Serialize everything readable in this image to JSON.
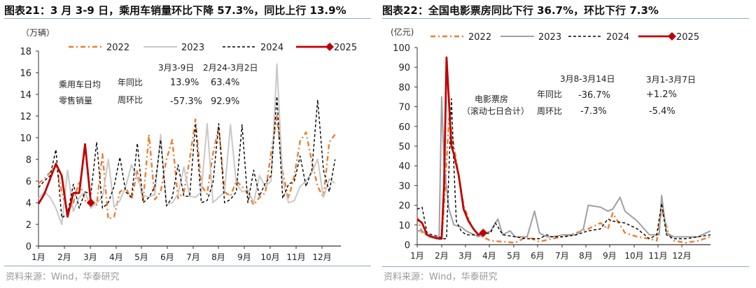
{
  "left": {
    "title": "图表21：3 月 3-9 日，乘用车销量环比下降 57.3%，同比上行 13.9%",
    "unit": "（万辆）",
    "source": "资料来源：Wind，华泰研究",
    "legend": [
      "2022",
      "2023",
      "2024",
      "2025"
    ],
    "table": {
      "row_label_1": "乘用车日均",
      "row_label_2": "零售销量",
      "col_1": "3月3-9日",
      "col_2": "2月24-3月2日",
      "yoy_label": "年同比",
      "wow_label": "周环比",
      "yoy_1": "13.9%",
      "yoy_2": "63.4%",
      "wow_1": "-57.3%",
      "wow_2": "92.9%"
    }
  },
  "right": {
    "title": "图表22：全国电影票房同比下行 36.7%，环比下行 7.3%",
    "unit": "(亿元)",
    "source": "资料来源：Wind，华泰研究",
    "legend": [
      "2022",
      "2023",
      "2024",
      "2025"
    ],
    "table": {
      "row_label_1": "电影票房",
      "row_label_2": "（滚动七日合计）",
      "col_1": "3月8-3月14日",
      "col_2": "3月1-3月7日",
      "yoy_label": "年同比",
      "wow_label": "周环比",
      "yoy_1": "-36.7%",
      "yoy_2": "+1.2%",
      "wow_1": "-7.3%",
      "wow_2": "-5.4%"
    }
  },
  "colors": {
    "y2022": "#ED7D31",
    "y2023": "#C8C8C8",
    "y2023_right": "#A0A0A0",
    "y2024": "#000000",
    "y2025": "#C00000"
  },
  "chart_data": [
    {
      "type": "line",
      "title": "图表21：3 月 3-9 日，乘用车销量环比下降 57.3%，同比上行 13.9%",
      "ylabel": "万辆",
      "ylim": [
        0,
        18
      ],
      "yticks": [
        0,
        2,
        4,
        6,
        8,
        10,
        12,
        14,
        16,
        18
      ],
      "xticks": [
        "1月",
        "2月",
        "3月",
        "4月",
        "5月",
        "6月",
        "7月",
        "8月",
        "9月",
        "10月",
        "11月",
        "12月"
      ],
      "legend_position": "top",
      "x_unit": "week index (approx, 0-52)",
      "series": [
        {
          "name": "2022",
          "style": "dash-dot orange",
          "x": [
            0,
            1,
            2,
            3,
            4,
            5,
            6,
            7,
            8,
            9,
            10,
            11,
            12,
            13,
            14,
            15,
            16,
            17,
            18,
            19,
            20,
            21,
            22,
            23,
            24,
            25,
            26,
            27,
            28,
            29,
            30,
            31,
            32,
            33,
            34,
            35,
            36,
            37,
            38,
            39,
            40,
            41,
            42,
            43,
            44,
            45,
            46,
            47,
            48,
            49,
            50,
            51
          ],
          "values": [
            5.8,
            6.2,
            6.8,
            7.5,
            5.0,
            3.2,
            4.0,
            6.0,
            4.2,
            4.0,
            3.8,
            8.5,
            2.5,
            2.7,
            5.0,
            5.4,
            4.3,
            7.0,
            4.2,
            10.3,
            4.3,
            5.0,
            8.0,
            9.8,
            4.4,
            5.0,
            8.0,
            11.7,
            5.6,
            4.8,
            8.5,
            11.0,
            5.0,
            4.6,
            6.0,
            5.5,
            4.8,
            3.8,
            4.5,
            4.9,
            8.6,
            12.0,
            6.8,
            4.4,
            6.5,
            9.7,
            10.5,
            7.8,
            5.5,
            4.5,
            9.6,
            10.3
          ]
        },
        {
          "name": "2023",
          "style": "solid light gray",
          "x": [
            0,
            1,
            2,
            3,
            4,
            5,
            6,
            7,
            8,
            9,
            10,
            11,
            12,
            13,
            14,
            15,
            16,
            17,
            18,
            19,
            20,
            21,
            22,
            23,
            24,
            25,
            26,
            27,
            28,
            29,
            30,
            31,
            32,
            33,
            34,
            35,
            36,
            37,
            38,
            39,
            40,
            41,
            42,
            43,
            44,
            45,
            46,
            47,
            48,
            49,
            50,
            51
          ],
          "values": [
            4.4,
            5.0,
            4.5,
            3.5,
            2.0,
            7.0,
            3.2,
            4.5,
            5.0,
            3.5,
            4.0,
            4.5,
            8.0,
            3.6,
            4.2,
            5.5,
            7.5,
            6.3,
            4.7,
            4.5,
            4.8,
            10.3,
            3.8,
            4.0,
            4.8,
            7.3,
            4.6,
            4.5,
            5.0,
            11.3,
            4.0,
            4.5,
            5.0,
            11.2,
            5.8,
            5.0,
            5.2,
            4.0,
            6.5,
            5.5,
            6.0,
            16.8,
            6.0,
            4.0,
            4.2,
            5.5,
            6.0,
            6.8,
            8.0,
            4.5,
            6.2,
            5.8
          ]
        },
        {
          "name": "2024",
          "style": "dashed black",
          "x": [
            0,
            1,
            2,
            3,
            4,
            5,
            6,
            7,
            8,
            9,
            10,
            11,
            12,
            13,
            14,
            15,
            16,
            17,
            18,
            19,
            20,
            21,
            22,
            23,
            24,
            25,
            26,
            27,
            28,
            29,
            30,
            31,
            32,
            33,
            34,
            35,
            36,
            37,
            38,
            39,
            40,
            41,
            42,
            43,
            44,
            45,
            46,
            47,
            48,
            49,
            50,
            51
          ],
          "values": [
            5.4,
            6.0,
            6.5,
            8.9,
            2.6,
            3.0,
            5.7,
            3.5,
            5.0,
            4.8,
            9.6,
            3.5,
            4.0,
            5.5,
            8.2,
            5.0,
            4.5,
            9.5,
            4.0,
            4.5,
            5.5,
            9.8,
            3.7,
            4.5,
            7.5,
            4.6,
            4.6,
            11.3,
            4.0,
            4.2,
            5.8,
            11.3,
            4.0,
            4.3,
            5.0,
            11.2,
            4.0,
            7.0,
            4.6,
            5.8,
            6.5,
            13.8,
            4.4,
            5.7,
            6.0,
            8.3,
            5.5,
            7.0,
            13.5,
            7.0,
            5.0,
            8.0
          ]
        },
        {
          "name": "2025",
          "style": "solid dark red thick",
          "x": [
            0,
            1,
            2,
            3,
            4,
            5,
            6,
            7,
            8,
            9
          ],
          "values": [
            3.9,
            4.8,
            6.2,
            7.6,
            6.5,
            2.7,
            4.9,
            4.9,
            9.4,
            4.0
          ]
        }
      ],
      "annotation_table": {
        "header": [
          "",
          "",
          "3月3-9日",
          "2月24-3月2日"
        ],
        "rows": [
          [
            "乘用车日均零售销量",
            "年同比",
            "13.9%",
            "63.4%"
          ],
          [
            "",
            "周环比",
            "-57.3%",
            "92.9%"
          ]
        ]
      }
    },
    {
      "type": "line",
      "title": "图表22：全国电影票房同比下行 36.7%，环比下行 7.3%",
      "ylabel": "亿元",
      "ylim": [
        0,
        100
      ],
      "yticks": [
        0,
        10,
        20,
        30,
        40,
        50,
        60,
        70,
        80,
        90,
        100
      ],
      "xticks": [
        "1月",
        "2月",
        "3月",
        "4月",
        "5月",
        "6月",
        "7月",
        "8月",
        "9月",
        "10月",
        "11月",
        "12月"
      ],
      "legend_position": "top",
      "x_unit": "month fraction (0=1月 start, 12=year end)",
      "series": [
        {
          "name": "2022",
          "style": "dash-dot orange",
          "x": [
            0,
            0.2,
            0.5,
            0.8,
            1.0,
            1.1,
            1.3,
            1.5,
            1.7,
            1.9,
            2.2,
            2.5,
            3.0,
            3.5,
            4.0,
            4.5,
            5.0,
            5.5,
            6.0,
            6.5,
            7.0,
            7.5,
            7.8,
            8.0,
            8.3,
            8.5,
            9.0,
            9.5,
            9.8,
            10.0,
            10.3,
            10.5,
            11.0,
            11.5,
            12.0
          ],
          "values": [
            14,
            6,
            4,
            3,
            4,
            20,
            64,
            50,
            35,
            20,
            10,
            5,
            2,
            1.5,
            1,
            4,
            1.5,
            3,
            4,
            6,
            8,
            11,
            8,
            16,
            10,
            6,
            4,
            3,
            2,
            18,
            5,
            2,
            1,
            2,
            4
          ]
        },
        {
          "name": "2023",
          "style": "solid gray",
          "x": [
            0,
            0.2,
            0.5,
            0.8,
            0.9,
            1.0,
            1.1,
            1.3,
            1.5,
            1.8,
            2.0,
            2.5,
            3.0,
            3.3,
            3.5,
            3.8,
            4.0,
            4.5,
            4.8,
            5.0,
            5.3,
            5.5,
            6.0,
            6.5,
            6.8,
            7.0,
            7.5,
            7.8,
            8.0,
            8.3,
            8.5,
            9.0,
            9.5,
            9.9,
            10.0,
            10.2,
            10.5,
            11.0,
            11.5,
            12.0
          ],
          "values": [
            7,
            7,
            4,
            3,
            5,
            75,
            40,
            18,
            10,
            9,
            7,
            4,
            7,
            13,
            5,
            7,
            4,
            4,
            17,
            6,
            4,
            4,
            5,
            5,
            8,
            20,
            19,
            17,
            18,
            24,
            17,
            12,
            5,
            5,
            25,
            6,
            4,
            4,
            4,
            7
          ]
        },
        {
          "name": "2024",
          "style": "dashed black",
          "x": [
            0,
            0.2,
            0.4,
            0.6,
            0.9,
            1.0,
            1.2,
            1.4,
            1.5,
            1.6,
            1.8,
            2.0,
            2.5,
            3.0,
            3.2,
            3.5,
            4.0,
            4.5,
            5.0,
            5.3,
            5.5,
            6.0,
            6.5,
            7.0,
            7.5,
            7.8,
            8.0,
            8.5,
            9.0,
            9.5,
            9.8,
            10.0,
            10.2,
            10.5,
            11.0,
            11.5,
            12.0
          ],
          "values": [
            18,
            19,
            6,
            5,
            4,
            3,
            3,
            74,
            40,
            12,
            7,
            5,
            5,
            6,
            11,
            5,
            4,
            3,
            3,
            5,
            4,
            4,
            5,
            7,
            8,
            13,
            12,
            11,
            8,
            3,
            5,
            21,
            5,
            3,
            3,
            4,
            5
          ]
        },
        {
          "name": "2025",
          "style": "solid dark red thick",
          "x": [
            0,
            0.2,
            0.4,
            0.6,
            0.9,
            1.0,
            1.1,
            1.2,
            1.4,
            1.5,
            1.7,
            1.9,
            2.1,
            2.3,
            2.5,
            2.7
          ],
          "values": [
            13,
            11,
            5,
            4,
            3,
            3,
            30,
            95,
            50,
            46,
            35,
            18,
            12,
            8,
            5,
            6
          ]
        }
      ],
      "annotation_table": {
        "header": [
          "",
          "",
          "3月8-3月14日",
          "3月1-3月7日"
        ],
        "rows": [
          [
            "电影票房（滚动七日合计）",
            "年同比",
            "-36.7%",
            "+1.2%"
          ],
          [
            "",
            "周环比",
            "-7.3%",
            "-5.4%"
          ]
        ]
      }
    }
  ]
}
